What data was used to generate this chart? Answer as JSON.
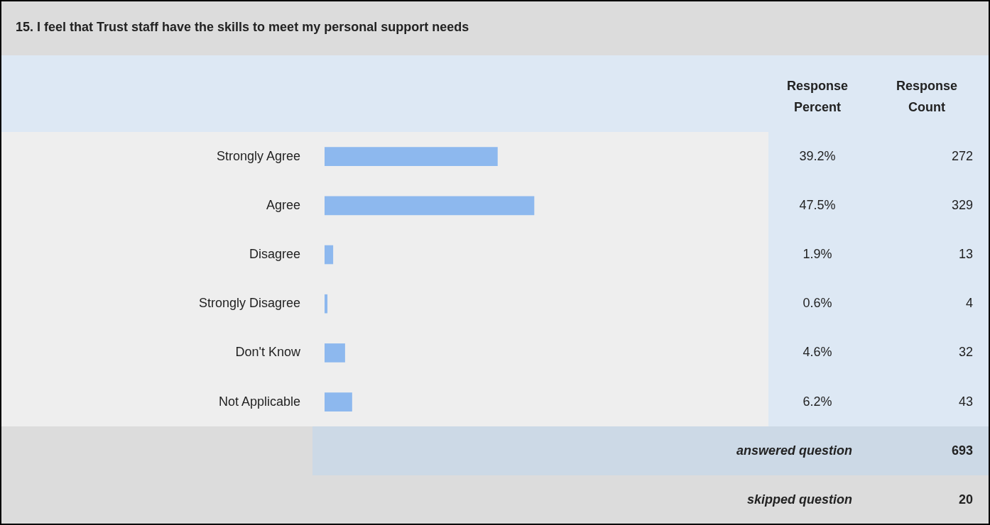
{
  "chart_data": {
    "type": "bar",
    "orientation": "horizontal",
    "title": "15. I feel that Trust staff have the skills to meet my personal support needs",
    "categories": [
      "Strongly Agree",
      "Agree",
      "Disagree",
      "Strongly Disagree",
      "Don't Know",
      "Not Applicable"
    ],
    "values": [
      39.2,
      47.5,
      1.9,
      0.6,
      4.6,
      6.2
    ],
    "value_labels": [
      "39.2%",
      "47.5%",
      "1.9%",
      "0.6%",
      "4.6%",
      "6.2%"
    ],
    "color": "#8db8ee",
    "tick_labels": "y",
    "annotations": [
      "Response Percent",
      "Response Count",
      "272",
      "329",
      "13",
      "4",
      "32",
      "43",
      "answered question",
      "693",
      "skipped question",
      "20"
    ]
  }
}
